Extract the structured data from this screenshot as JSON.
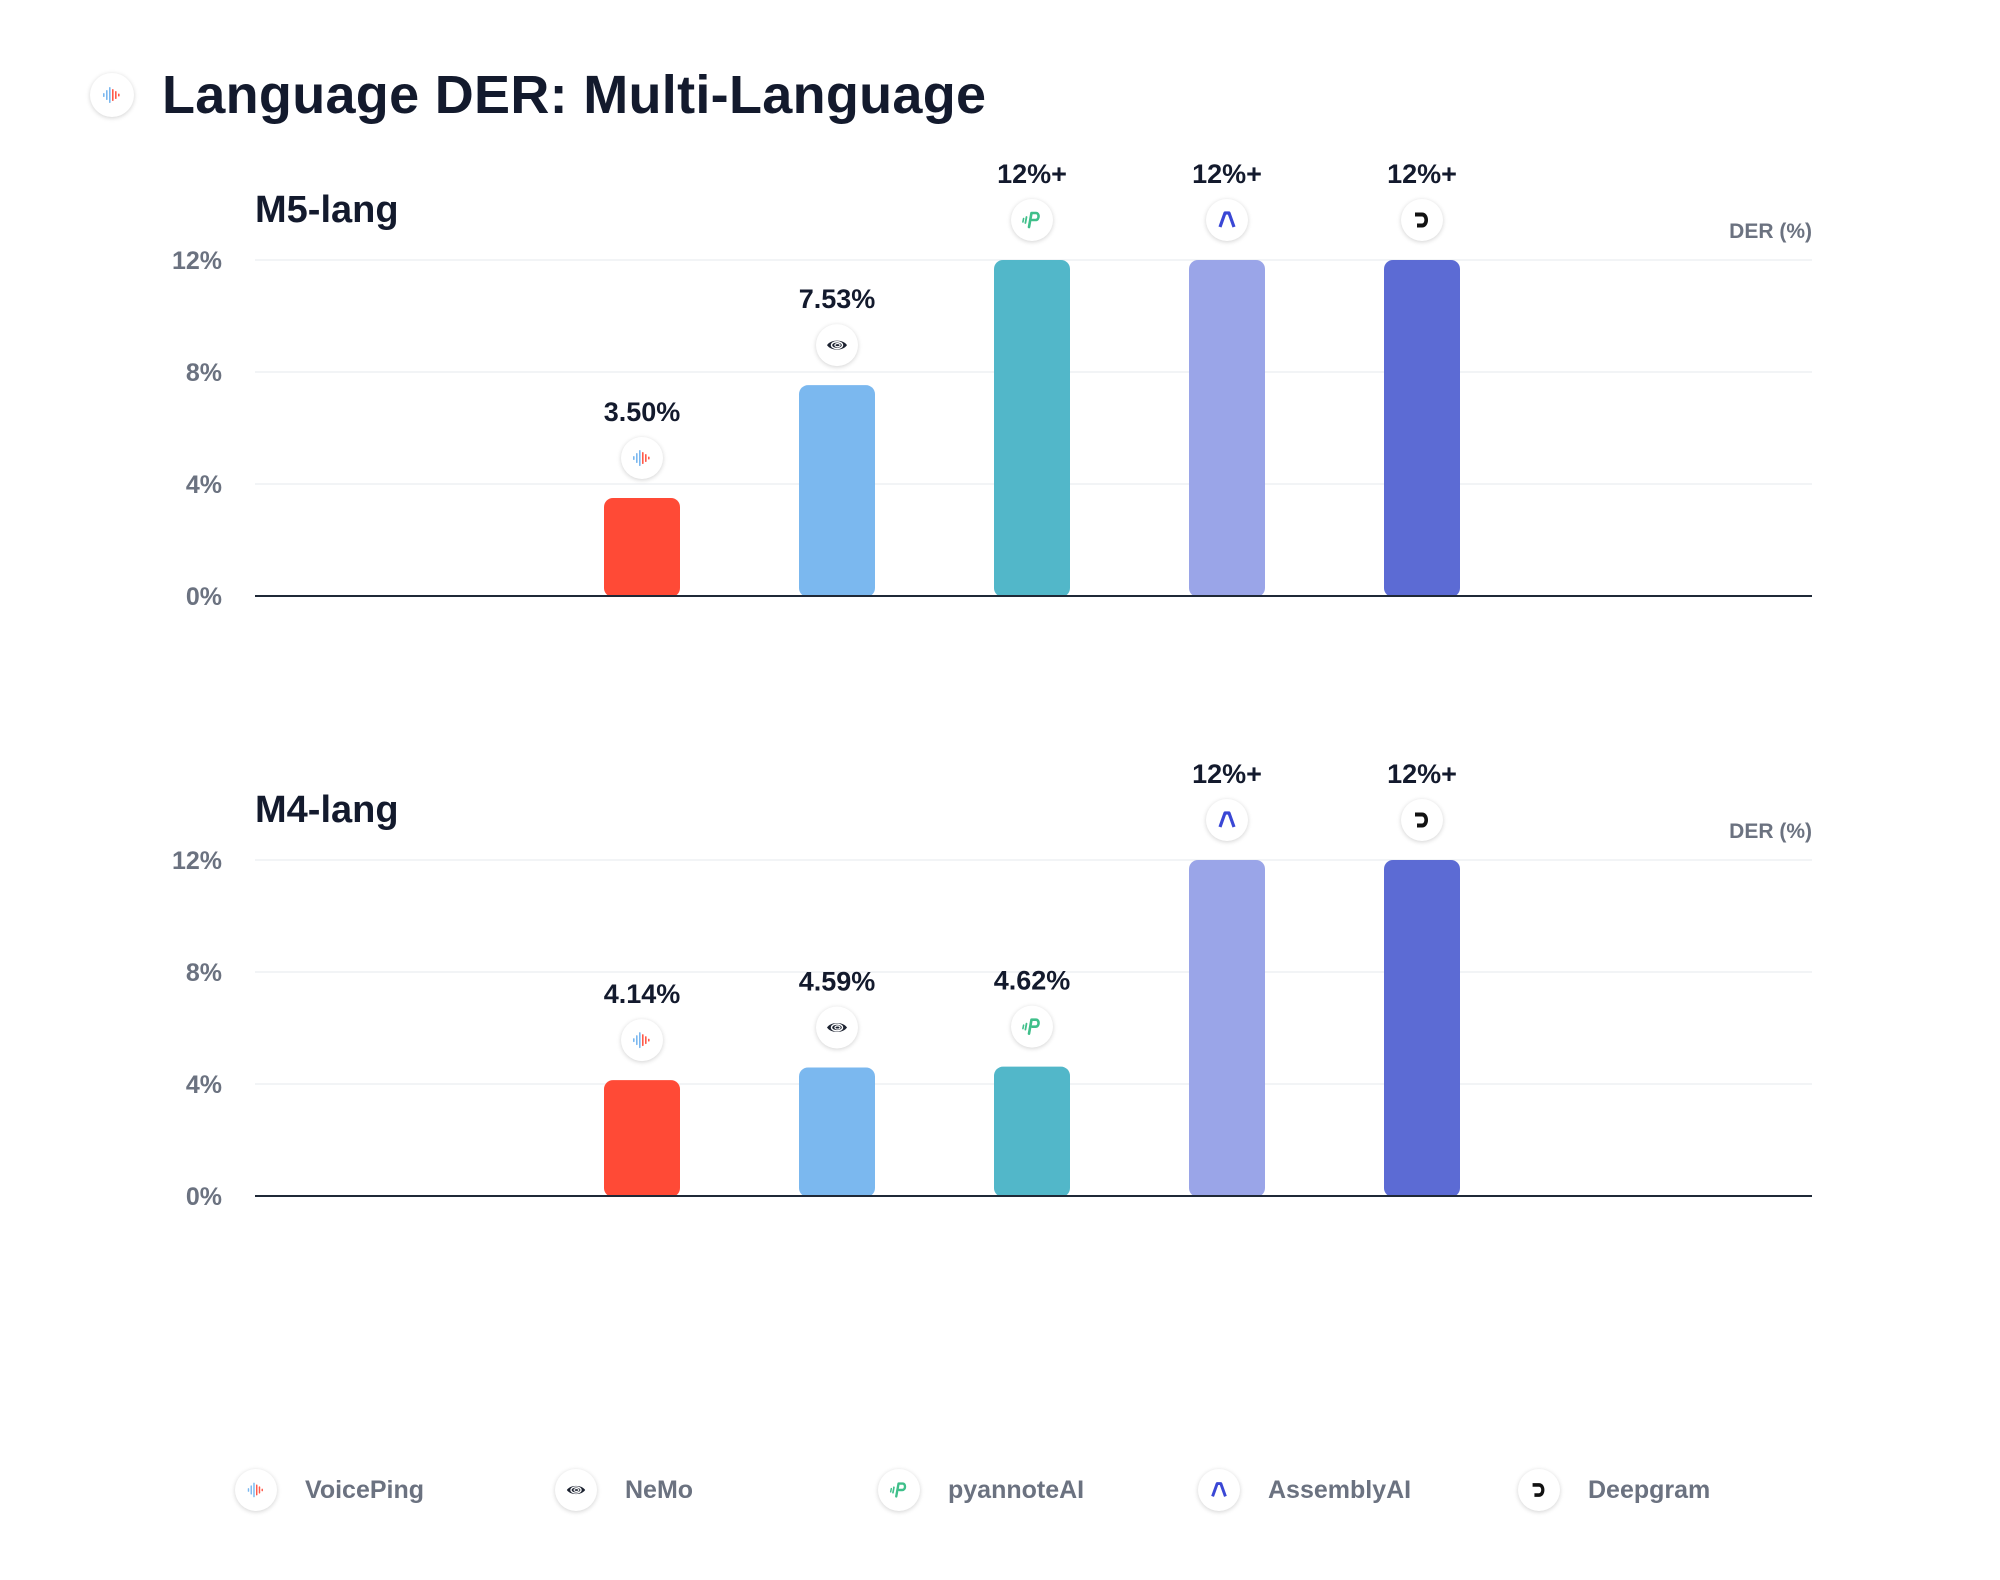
{
  "title": "Language DER: Multi-Language",
  "chart_data": [
    {
      "type": "bar",
      "title": "M5-lang",
      "ylabel": "DER (%)",
      "ylim": [
        0,
        12
      ],
      "yticks": [
        "0%",
        "4%",
        "8%",
        "12%"
      ],
      "categories": [
        "VoicePing",
        "NeMo",
        "pyannoteAI",
        "AssemblyAI",
        "Deepgram"
      ],
      "values": [
        3.5,
        7.53,
        12,
        12,
        12
      ],
      "labels": [
        "3.50%",
        "7.53%",
        "12%+",
        "12%+",
        "12%+"
      ],
      "legend": "bottom"
    },
    {
      "type": "bar",
      "title": "M4-lang",
      "ylabel": "DER (%)",
      "ylim": [
        0,
        12
      ],
      "yticks": [
        "0%",
        "4%",
        "8%",
        "12%"
      ],
      "categories": [
        "VoicePing",
        "NeMo",
        "pyannoteAI",
        "AssemblyAI",
        "Deepgram"
      ],
      "values": [
        4.14,
        4.59,
        4.62,
        12,
        12
      ],
      "labels": [
        "4.14%",
        "4.59%",
        "4.62%",
        "12%+",
        "12%+"
      ],
      "legend": "bottom"
    }
  ],
  "providers": [
    {
      "name": "VoicePing",
      "color": "#ff4a36",
      "icon": "voiceping-waveform-icon"
    },
    {
      "name": "NeMo",
      "color": "#7bb8ef",
      "icon": "nvidia-eye-icon"
    },
    {
      "name": "pyannoteAI",
      "color": "#52b7c9",
      "icon": "pyannote-p-icon"
    },
    {
      "name": "AssemblyAI",
      "color": "#9aa5e8",
      "icon": "assemblyai-a-icon"
    },
    {
      "name": "Deepgram",
      "color": "#5c6bd4",
      "icon": "deepgram-d-icon"
    }
  ]
}
